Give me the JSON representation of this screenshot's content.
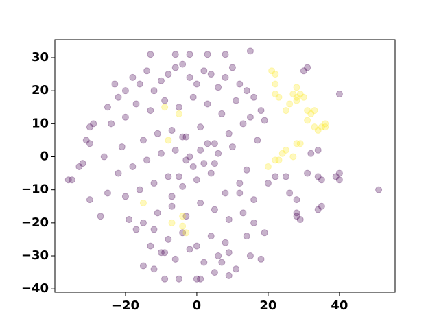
{
  "chart_data": {
    "type": "scatter",
    "xlim": [
      -39.8,
      55.6
    ],
    "ylim": [
      -41,
      35.4
    ],
    "xticks": [
      {
        "value": -20,
        "label": "−20"
      },
      0,
      20,
      40
    ],
    "yticks": [
      {
        "value": -40,
        "label": "−40"
      },
      {
        "value": -30,
        "label": "−30"
      },
      {
        "value": -20,
        "label": "−20"
      },
      {
        "value": -10,
        "label": "−10"
      },
      0,
      10,
      20,
      30
    ],
    "alpha": 0.3,
    "series": [
      {
        "color": "#440154",
        "x": [
          -35,
          -36,
          -33,
          -32,
          -30,
          -30,
          -31,
          -30,
          -29,
          -23,
          -13,
          -6,
          -2,
          3,
          8,
          15,
          -9,
          -12,
          -15,
          -5,
          1,
          0,
          5,
          9,
          11,
          15,
          18,
          19,
          40,
          51,
          31,
          30,
          32,
          34,
          31,
          34,
          35,
          40,
          40,
          39,
          35,
          34,
          28,
          28,
          29,
          26,
          28,
          25,
          22,
          20,
          12,
          -25,
          -22,
          -20,
          -18,
          -16,
          -14,
          -12,
          -10,
          -8,
          -6,
          -4,
          -2,
          0,
          2,
          4,
          6,
          8,
          10,
          12,
          14,
          16,
          18,
          -24,
          -20,
          -17,
          -13,
          -9,
          -5,
          -1,
          3,
          7,
          11,
          15,
          19,
          -26,
          -21,
          -15,
          -11,
          -7,
          -3,
          1,
          5,
          9,
          13,
          17,
          -22,
          -18,
          -14,
          -10,
          -6,
          -2,
          2,
          6,
          10,
          14,
          -20,
          -16,
          -12,
          -8,
          -4,
          0,
          4,
          8,
          12,
          16,
          -15,
          -11,
          -7,
          -3,
          1,
          5,
          9,
          13,
          -12,
          -8,
          -4,
          0,
          4,
          8,
          -10,
          -6,
          -2,
          2,
          6,
          -3,
          1,
          -1,
          3,
          -5,
          5,
          -17,
          -19,
          -27,
          -25,
          14,
          16,
          -13,
          -9,
          7,
          9,
          -4,
          -7
        ],
        "values": [
          -7,
          -7,
          -3,
          -2,
          -13,
          9,
          5,
          4,
          10,
          22,
          31,
          31,
          31,
          31,
          31,
          32,
          -37,
          -34,
          -33,
          -37,
          -37,
          -37,
          -35,
          -36,
          -34,
          -30,
          -31,
          -23,
          19,
          -10,
          27,
          26,
          1,
          2,
          -5,
          -6,
          -7,
          -5,
          -7,
          -6,
          -15,
          -16,
          -18,
          -17,
          -19,
          -11,
          -13,
          -6,
          -6,
          -8,
          -11,
          15,
          18,
          20,
          24,
          22,
          26,
          20,
          23,
          25,
          27,
          28,
          24,
          22,
          26,
          25,
          21,
          24,
          27,
          22,
          20,
          18,
          14,
          10,
          12,
          16,
          14,
          17,
          15,
          18,
          16,
          13,
          17,
          12,
          11,
          0,
          3,
          5,
          7,
          8,
          6,
          9,
          4,
          7,
          10,
          5,
          -5,
          -3,
          -1,
          1,
          2,
          0,
          -2,
          1,
          3,
          -4,
          -12,
          -10,
          -8,
          -6,
          -9,
          -7,
          -5,
          -11,
          -8,
          -13,
          -20,
          -17,
          -15,
          -18,
          -14,
          -16,
          -19,
          -17,
          -22,
          -25,
          -23,
          -27,
          -24,
          -26,
          -29,
          -31,
          -28,
          -32,
          -30,
          -1,
          2,
          -3,
          4,
          -6,
          -2,
          -22,
          -19,
          -18,
          -11,
          -24,
          -20,
          -27,
          -29,
          -32,
          -29,
          6,
          -12
        ]
      },
      {
        "color": "#fde725",
        "x": [
          21,
          22,
          22,
          23,
          22,
          28,
          27,
          29,
          30,
          28,
          26,
          31,
          33,
          32,
          33,
          35,
          36,
          34,
          31,
          29,
          28,
          25,
          23,
          22,
          24,
          20,
          -9,
          -5,
          -8,
          -15,
          -4,
          -4,
          -7,
          -3,
          27,
          25,
          36,
          28
        ],
        "values": [
          26,
          25,
          22,
          18,
          19,
          18,
          19,
          19,
          18,
          21,
          16,
          14,
          14,
          13,
          9,
          9,
          9,
          8,
          11,
          4,
          4,
          2,
          -1,
          -1,
          1,
          -3,
          15,
          13,
          5,
          -14,
          -18,
          -21,
          -20,
          -23,
          0,
          14,
          10,
          17
        ]
      }
    ]
  }
}
